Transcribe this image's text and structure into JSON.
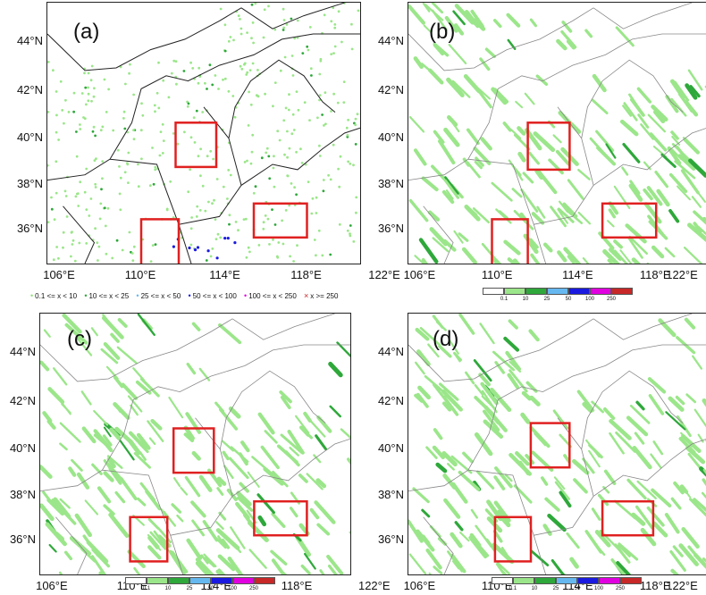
{
  "panels": [
    {
      "label": "(a)",
      "type": "station"
    },
    {
      "label": "(b)",
      "type": "model"
    },
    {
      "label": "(c)",
      "type": "model"
    },
    {
      "label": "(d)",
      "type": "model"
    }
  ],
  "lat_labels": [
    "44°N",
    "42°N",
    "40°N",
    "38°N",
    "36°N"
  ],
  "lon_labels": [
    "106°E",
    "110°E",
    "114°E",
    "118°E",
    "122°E"
  ],
  "legend_a": {
    "items": [
      {
        "symbol": "•",
        "text": "0.1 <= x < 10",
        "color": "#8fe07a"
      },
      {
        "symbol": "•",
        "text": "10 <= x < 25",
        "color": "#2ea83a"
      },
      {
        "symbol": "•",
        "text": "25 <= x < 50",
        "color": "#66b8f0"
      },
      {
        "symbol": "•",
        "text": "50 <= x < 100",
        "color": "#1a1ae0"
      },
      {
        "symbol": "•",
        "text": "100 <= x < 250",
        "color": "#e000e0"
      },
      {
        "symbol": "×",
        "text": "x >= 250",
        "color": "#c82828"
      }
    ]
  },
  "colorbar": {
    "ticks": [
      "0.1",
      "10",
      "25",
      "50",
      "100",
      "250"
    ],
    "colors": [
      "#ffffff",
      "#9be68a",
      "#2ea83a",
      "#66b8f0",
      "#1a1ae0",
      "#e000e0",
      "#c82828"
    ]
  },
  "colors": {
    "box": "#e02020",
    "rain_light": "#9be68a",
    "rain_mid": "#2ea83a",
    "boundary": "#333333"
  }
}
